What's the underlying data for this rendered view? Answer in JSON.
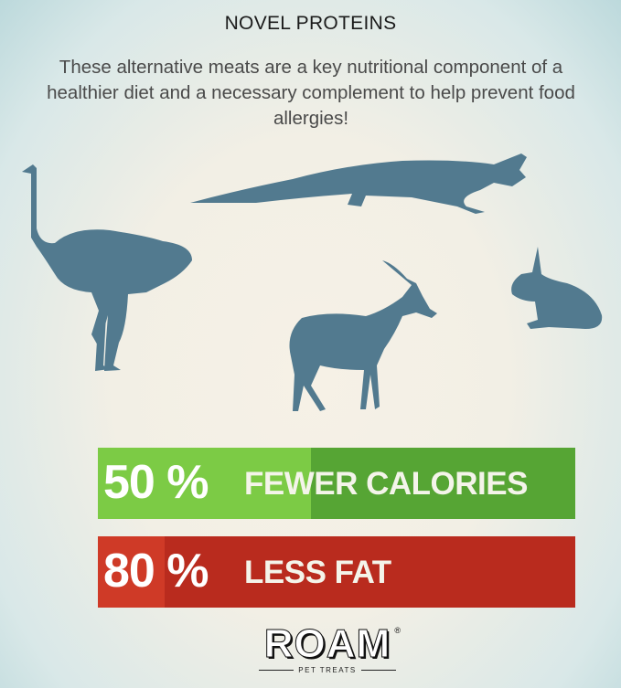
{
  "header": {
    "title": "NOVEL PROTEINS",
    "subtitle": "These alternative meats are a key nutritional component of a healthier diet and a necessary complement to help prevent food allergies!"
  },
  "animals": [
    "ostrich-icon",
    "crocodile-icon",
    "gazelle-icon",
    "rabbit-icon"
  ],
  "stats": [
    {
      "percent": "50 %",
      "label": "FEWER CALORIES",
      "value": 50,
      "color": "#56a534",
      "highlight": "#7ccb45"
    },
    {
      "percent": "80 %",
      "label": "LESS FAT",
      "value": 80,
      "color": "#b92b1e",
      "highlight": "#cf3a27"
    }
  ],
  "logo": {
    "brand": "ROAM",
    "registered": "®",
    "tagline": "PET TREATS"
  },
  "colors": {
    "silhouette": "#527a8f"
  }
}
